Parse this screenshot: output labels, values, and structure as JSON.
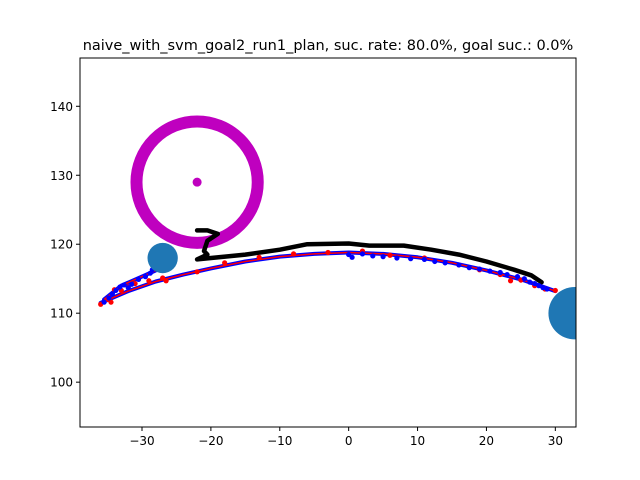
{
  "chart_data": {
    "type": "scatter",
    "title": "naive_with_svm_goal2_run1_plan, suc. rate: 80.0%, goal suc.: 0.0%",
    "xlabel": "",
    "ylabel": "",
    "xlim": [
      -39,
      33
    ],
    "ylim": [
      93.5,
      147
    ],
    "xticks": [
      -30,
      -20,
      -10,
      0,
      10,
      20,
      30
    ],
    "yticks": [
      100,
      110,
      120,
      130,
      140
    ],
    "grid": false,
    "legend": "none",
    "colors": {
      "ring": "#bf00bf",
      "goal_point": "#bf00bf",
      "obstacle": "#1f77b4",
      "plan_path": "#000000",
      "red_traj": "#ff0000",
      "blue_traj": "#0000ff"
    },
    "goal_ring": {
      "center": [
        -22,
        129
      ],
      "radius": 8.8
    },
    "goal_point": [
      -22,
      129
    ],
    "obstacles": [
      {
        "center": [
          -27,
          118
        ],
        "radius": 2.2
      },
      {
        "center": [
          32.8,
          110
        ],
        "radius": 3.8
      }
    ],
    "plan_path": [
      [
        -22,
        122
      ],
      [
        -20.5,
        122
      ],
      [
        -19,
        121.5
      ],
      [
        -20.5,
        120.5
      ],
      [
        -21,
        119
      ],
      [
        -20.5,
        118.5
      ],
      [
        -22,
        117.8
      ],
      [
        -15,
        118.5
      ],
      [
        -10,
        119.2
      ],
      [
        -6,
        120
      ],
      [
        0,
        120.1
      ],
      [
        3,
        119.8
      ],
      [
        8,
        119.8
      ],
      [
        12,
        119.2
      ],
      [
        16,
        118.5
      ],
      [
        20,
        117.5
      ],
      [
        24,
        116.3
      ],
      [
        26.5,
        115.5
      ],
      [
        28,
        114.5
      ]
    ],
    "arc_lower": [
      [
        -36,
        111.5
      ],
      [
        -32,
        113.2
      ],
      [
        -28,
        114.6
      ],
      [
        -24,
        115.6
      ],
      [
        -20,
        116.5
      ],
      [
        -15,
        117.5
      ],
      [
        -10,
        118.2
      ],
      [
        -5,
        118.6
      ],
      [
        0,
        118.8
      ],
      [
        5,
        118.6
      ],
      [
        10,
        118.1
      ],
      [
        15,
        117.3
      ],
      [
        20,
        116.2
      ],
      [
        25,
        114.9
      ],
      [
        28,
        113.9
      ],
      [
        30,
        113.2
      ]
    ],
    "arc_upper": [
      [
        -35.5,
        112
      ],
      [
        -33,
        114
      ],
      [
        -30,
        115.3
      ],
      [
        -28,
        116.2
      ]
    ],
    "red_traj": [
      [
        -36,
        111.3
      ],
      [
        -35,
        112
      ],
      [
        -34.5,
        111.6
      ],
      [
        -34,
        113.4
      ],
      [
        -33,
        113.3
      ],
      [
        -32,
        113.8
      ],
      [
        -31,
        114.3
      ],
      [
        -29,
        114.7
      ],
      [
        -27,
        115.1
      ],
      [
        -26.5,
        114.7
      ],
      [
        -22,
        116
      ],
      [
        -18,
        117.3
      ],
      [
        -13,
        118.1
      ],
      [
        -8,
        118.6
      ],
      [
        -3,
        118.8
      ],
      [
        2,
        119
      ],
      [
        6,
        118.4
      ],
      [
        11,
        118
      ],
      [
        16,
        117
      ],
      [
        19,
        116.3
      ],
      [
        22,
        115.6
      ],
      [
        23.5,
        114.7
      ],
      [
        25,
        114.8
      ],
      [
        27,
        114
      ],
      [
        28.5,
        113.5
      ],
      [
        30,
        113.3
      ]
    ],
    "blue_traj": [
      [
        -35.5,
        111.6
      ],
      [
        -34.8,
        112.2
      ],
      [
        -34.3,
        112.8
      ],
      [
        -33.8,
        113.3
      ],
      [
        -33.2,
        113.8
      ],
      [
        -32.6,
        114.1
      ],
      [
        -31.5,
        114.2
      ],
      [
        -30.5,
        114.9
      ],
      [
        -29.5,
        115.3
      ],
      [
        -28.8,
        115.8
      ],
      [
        -28.5,
        116.3
      ],
      [
        -32,
        113.7
      ],
      [
        0,
        118.5
      ],
      [
        0.5,
        118.1
      ],
      [
        2,
        118.6
      ],
      [
        3.5,
        118.3
      ],
      [
        5,
        118.2
      ],
      [
        7,
        118
      ],
      [
        9,
        117.9
      ],
      [
        11,
        117.8
      ],
      [
        12.5,
        117.5
      ],
      [
        14,
        117.3
      ],
      [
        16,
        117
      ],
      [
        17.5,
        116.6
      ],
      [
        19,
        116.4
      ],
      [
        20.5,
        116.1
      ],
      [
        22,
        115.9
      ],
      [
        23,
        115.6
      ],
      [
        24.5,
        115.3
      ],
      [
        25.5,
        115
      ],
      [
        26.3,
        114.5
      ],
      [
        27,
        114.3
      ],
      [
        27.6,
        114
      ],
      [
        28.2,
        113.7
      ],
      [
        28.8,
        113.5
      ]
    ]
  }
}
